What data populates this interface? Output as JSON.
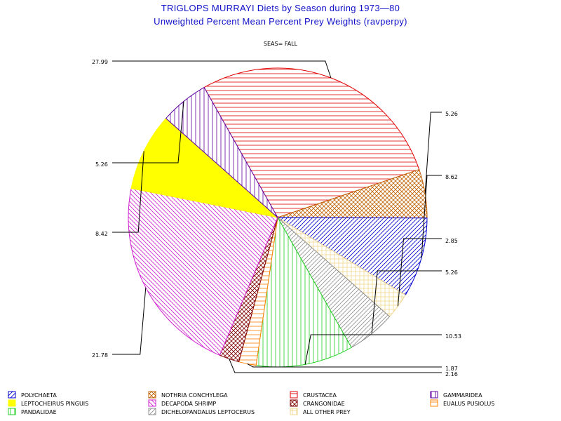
{
  "chart_data": {
    "type": "pie",
    "title": "TRIGLOPS MURRAYI Diets by Season during 1973—80",
    "subtitle": "Unweighted Percent Mean Percent Prey  Weights (ravperpy)",
    "panel_label": "SEAS= FALL",
    "slices": [
      {
        "name": "CRUSTACEA",
        "value": 27.99,
        "label": "27.99",
        "color": "#e00000",
        "pattern": "hlines"
      },
      {
        "name": "NOTHRIA CONCHYLEGA",
        "value": 5.26,
        "label": "5.26",
        "color": "#c06000",
        "pattern": "diagcross"
      },
      {
        "name": "POLYCHAETA",
        "value": 8.62,
        "label": "8.62",
        "color": "#0000d0",
        "pattern": "diag_up"
      },
      {
        "name": "ALL OTHER PREY",
        "value": 2.85,
        "label": "2.85",
        "color": "#f0d890",
        "pattern": "grid"
      },
      {
        "name": "DICHELOPANDALUS LEPTOCERUS",
        "value": 5.26,
        "label": "5.26",
        "color": "#909090",
        "pattern": "diag_up"
      },
      {
        "name": "PANDALIDAE",
        "value": 10.53,
        "label": "10.53",
        "color": "#20d020",
        "pattern": "vlines"
      },
      {
        "name": "EUALUS PUSIOLUS",
        "value": 1.87,
        "label": "1.87",
        "color": "#ff8000",
        "pattern": "hlines"
      },
      {
        "name": "CRANGONIDAE",
        "value": 2.16,
        "label": "2.16",
        "color": "#800000",
        "pattern": "diagcross"
      },
      {
        "name": "DECAPODA SHRIMP",
        "value": 21.78,
        "label": "21.78",
        "color": "#d020d0",
        "pattern": "diag_down"
      },
      {
        "name": "LEPTOCHEIRUS PINGUIS",
        "value": 8.42,
        "label": "8.42",
        "color": "#ffff00",
        "pattern": "solid"
      },
      {
        "name": "GAMMARIDEA",
        "value": 5.26,
        "label": "5.26",
        "color": "#6000a0",
        "pattern": "vlines"
      }
    ],
    "legend": {
      "placement": "bottom",
      "items": [
        {
          "name": "POLYCHAETA",
          "color": "#0000d0",
          "pattern": "diag_up"
        },
        {
          "name": "NOTHRIA CONCHYLEGA",
          "color": "#c06000",
          "pattern": "diagcross"
        },
        {
          "name": "CRUSTACEA",
          "color": "#e00000",
          "pattern": "hlines"
        },
        {
          "name": "GAMMARIDEA",
          "color": "#6000a0",
          "pattern": "vlines"
        },
        {
          "name": "LEPTOCHEIRUS PINGUIS",
          "color": "#ffff00",
          "pattern": "solid"
        },
        {
          "name": "DECAPODA SHRIMP",
          "color": "#d020d0",
          "pattern": "diag_down"
        },
        {
          "name": "CRANGONIDAE",
          "color": "#800000",
          "pattern": "diagcross"
        },
        {
          "name": "EUALUS PUSIOLUS",
          "color": "#ff8000",
          "pattern": "hlines"
        },
        {
          "name": "PANDALIDAE",
          "color": "#20d020",
          "pattern": "vlines"
        },
        {
          "name": "DICHELOPANDALUS LEPTOCERUS",
          "color": "#909090",
          "pattern": "diag_up"
        },
        {
          "name": "ALL OTHER PREY",
          "color": "#f0d890",
          "pattern": "grid"
        }
      ]
    }
  }
}
